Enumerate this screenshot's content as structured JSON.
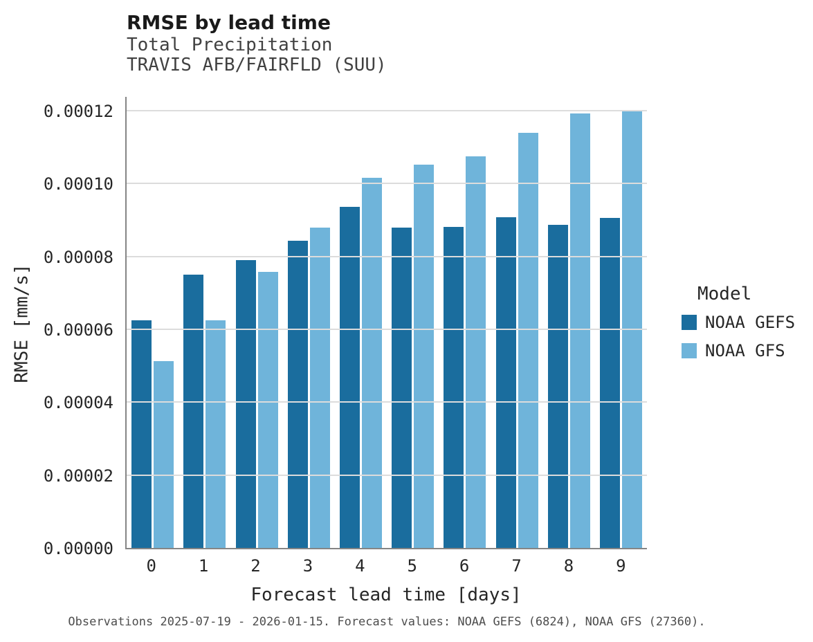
{
  "chart_data": {
    "type": "bar",
    "title": "RMSE by lead time",
    "subtitle_lines": [
      "Total Precipitation",
      "TRAVIS AFB/FAIRFLD (SUU)"
    ],
    "xlabel": "Forecast lead time [days]",
    "ylabel": "RMSE [mm/s]",
    "categories": [
      "0",
      "1",
      "2",
      "3",
      "4",
      "5",
      "6",
      "7",
      "8",
      "9"
    ],
    "series": [
      {
        "name": "NOAA GEFS",
        "color": "#1a6d9e",
        "values": [
          6.25e-05,
          7.5e-05,
          7.89e-05,
          8.43e-05,
          9.37e-05,
          8.79e-05,
          8.81e-05,
          9.08e-05,
          8.87e-05,
          9.06e-05
        ]
      },
      {
        "name": "NOAA GFS",
        "color": "#6fb4da",
        "values": [
          5.13e-05,
          6.25e-05,
          7.58e-05,
          8.79e-05,
          0.0001016,
          0.0001052,
          0.0001075,
          0.0001139,
          0.0001192,
          0.0001202
        ]
      }
    ],
    "ylim": [
      0,
      0.00012
    ],
    "yticks": [
      0,
      2e-05,
      4e-05,
      6e-05,
      8e-05,
      0.0001,
      0.00012
    ],
    "ytick_labels": [
      "0.00000",
      "0.00002",
      "0.00004",
      "0.00006",
      "0.00008",
      "0.00010",
      "0.00012"
    ],
    "grid": true,
    "legend_title": "Model",
    "legend_position": "right",
    "caption": "Observations 2025-07-19 - 2026-01-15. Forecast values: NOAA GEFS (6824), NOAA GFS (27360)."
  },
  "colors": {
    "gridline": "#dcdcdc",
    "axis_line": "#858585",
    "text_primary": "#262626",
    "text_secondary": "#414141",
    "caption_text": "#4d4d4d"
  }
}
